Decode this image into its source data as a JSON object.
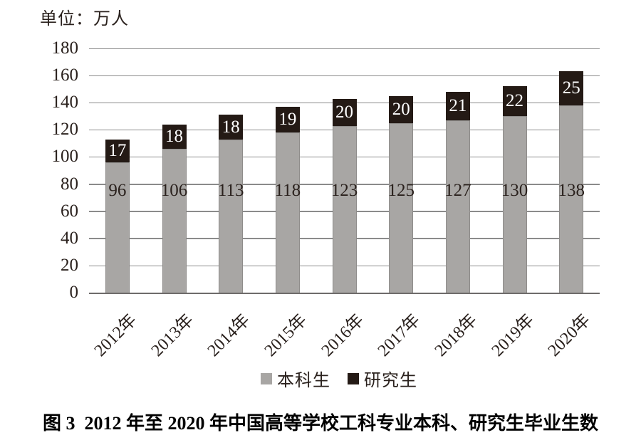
{
  "figure": {
    "unit_label": "单位：万人",
    "caption": "图 3  2012 年至 2020 年中国高等学校工科专业本科、研究生毕业生数"
  },
  "chart_data": {
    "type": "bar",
    "stacked": true,
    "title": "图 3  2012 年至 2020 年中国高等学校工科专业本科、研究生毕业生数",
    "unit_label": "单位：万人",
    "categories": [
      "2012年",
      "2013年",
      "2014年",
      "2015年",
      "2016年",
      "2017年",
      "2018年",
      "2019年",
      "2020年"
    ],
    "series": [
      {
        "name": "本科生",
        "color": "#a8a6a4",
        "values": [
          96,
          106,
          113,
          118,
          123,
          125,
          127,
          130,
          138
        ]
      },
      {
        "name": "研究生",
        "color": "#241a15",
        "values": [
          17,
          18,
          18,
          19,
          20,
          20,
          21,
          22,
          25
        ]
      }
    ],
    "totals": [
      113,
      124,
      131,
      137,
      143,
      145,
      148,
      152,
      163
    ],
    "ylim": [
      0,
      180
    ],
    "yticks": [
      0,
      20,
      40,
      60,
      80,
      100,
      120,
      140,
      160,
      180
    ],
    "grid": true,
    "legend_position": "bottom",
    "value_label_color_undergrad": "#2a211d",
    "value_label_color_grad": "#ffffff"
  },
  "colors": {
    "background": "#ffffff",
    "gridline": "#8b8b8b",
    "axis_line": "#6e6b6a",
    "text": "#2a211d",
    "bar_undergrad": "#a8a6a4",
    "bar_grad": "#241a15"
  }
}
